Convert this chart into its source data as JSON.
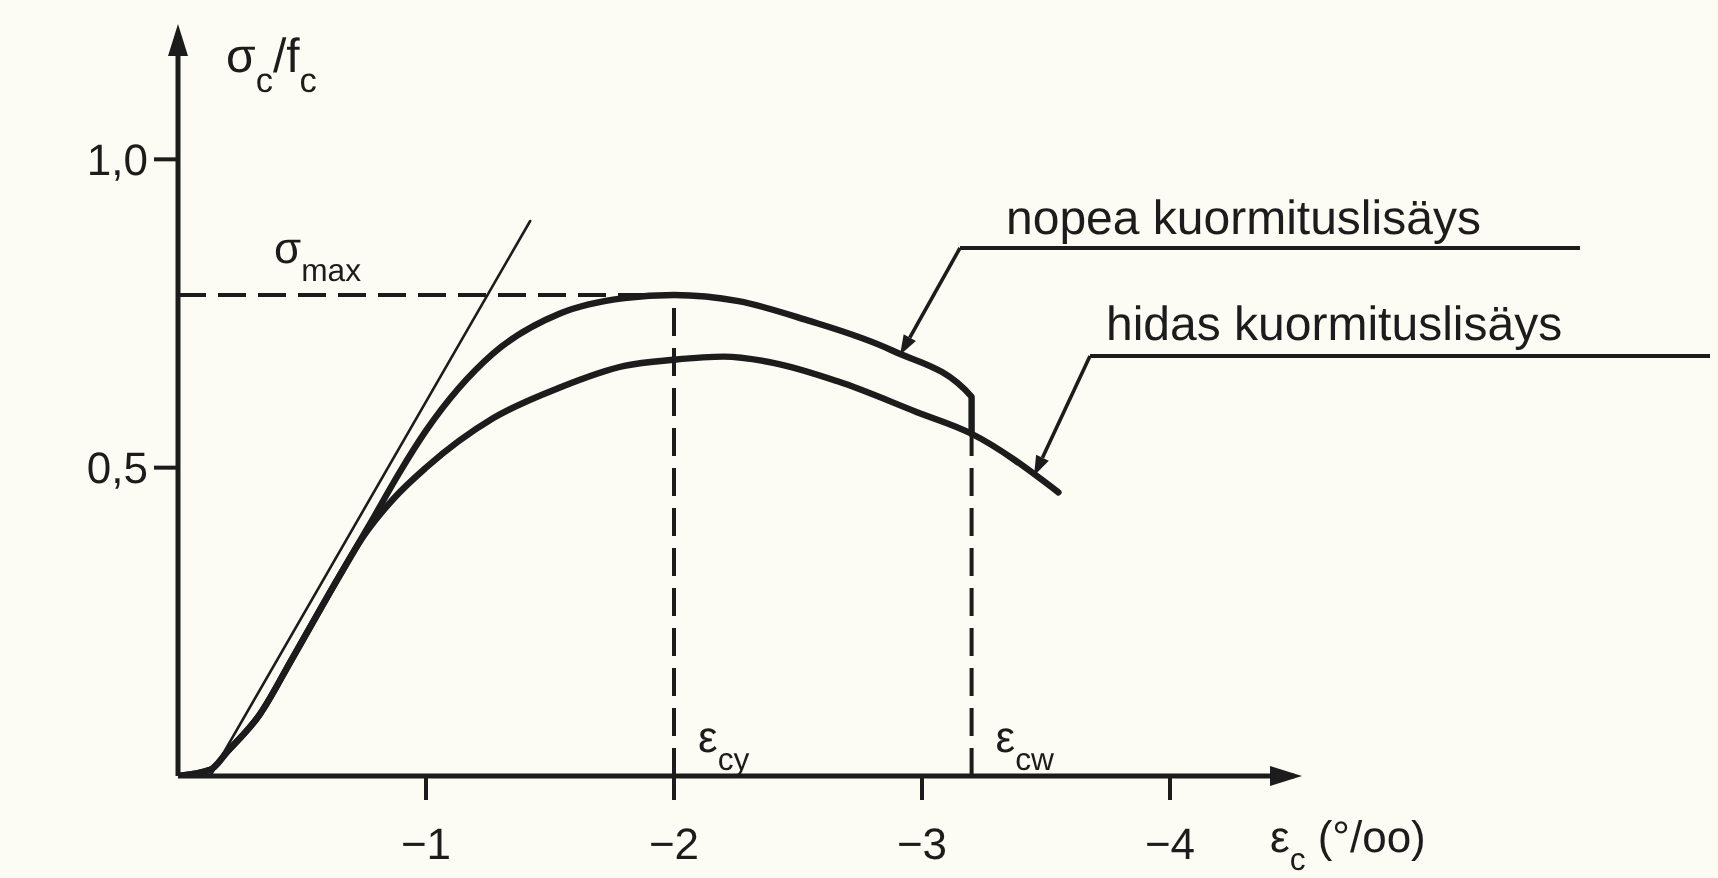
{
  "chart_data": {
    "type": "line",
    "xlabel": "ε$_{c}$ (°/oo)",
    "ylabel": "σ$_{c}$/f$_{c}$",
    "xlim": [
      0,
      -4.5
    ],
    "ylim": [
      0,
      1.2
    ],
    "xticks": [
      {
        "value": -1,
        "label": "−1"
      },
      {
        "value": -2,
        "label": "−2"
      },
      {
        "value": -3,
        "label": "−3"
      },
      {
        "value": -4,
        "label": "−4"
      }
    ],
    "yticks": [
      {
        "value": 0.5,
        "label": "0,5"
      },
      {
        "value": 1,
        "label": "1,0"
      }
    ],
    "grid": false,
    "legend": false,
    "marker": "none",
    "series": [
      {
        "name": "nopea kuormituslisäys",
        "color": "#1c1c1c",
        "x": [
          0,
          -0.13,
          -0.2,
          -0.33,
          -0.46,
          -0.63,
          -0.79,
          -0.89,
          -1.0,
          -1.27,
          -1.54,
          -1.8,
          -2.0,
          -2.26,
          -2.53,
          -2.88,
          -3.2,
          -3.2
        ],
        "values": [
          0,
          0.01,
          0.04,
          0.1,
          0.19,
          0.31,
          0.42,
          0.49,
          0.56,
          0.685,
          0.75,
          0.775,
          0.78,
          0.77,
          0.74,
          0.69,
          0.615,
          0.555
        ]
      },
      {
        "name": "hidas kuormituslisäys",
        "color": "#1c1c1c",
        "x": [
          0,
          -0.13,
          -0.2,
          -0.33,
          -0.46,
          -0.63,
          -0.75,
          -0.87,
          -1.0,
          -1.27,
          -1.54,
          -1.8,
          -2.0,
          -2.2,
          -2.4,
          -2.66,
          -2.98,
          -3.2,
          -3.55
        ],
        "values": [
          0,
          0.01,
          0.04,
          0.1,
          0.19,
          0.31,
          0.39,
          0.45,
          0.5,
          0.58,
          0.63,
          0.665,
          0.675,
          0.68,
          0.67,
          0.64,
          0.59,
          0.555,
          0.46
        ]
      },
      {
        "type": "line",
        "color": "#1c1c1c",
        "x": [
          -0.13,
          -1.42
        ],
        "values": [
          0,
          0.9
        ]
      }
    ],
    "ref_lines": [
      {
        "axis": "y",
        "value": 0.78,
        "label": "σ$_{max}$",
        "color": "#1c1c1c",
        "line_style": "dashed"
      },
      {
        "axis": "x",
        "value": -2,
        "label": "ε$_{cy}$",
        "color": "#1c1c1c",
        "line_style": "dashed"
      },
      {
        "axis": "x",
        "value": -3.2,
        "label": "ε$_{cw}$",
        "color": "#1c1c1c",
        "line_style": "dashed"
      }
    ]
  }
}
